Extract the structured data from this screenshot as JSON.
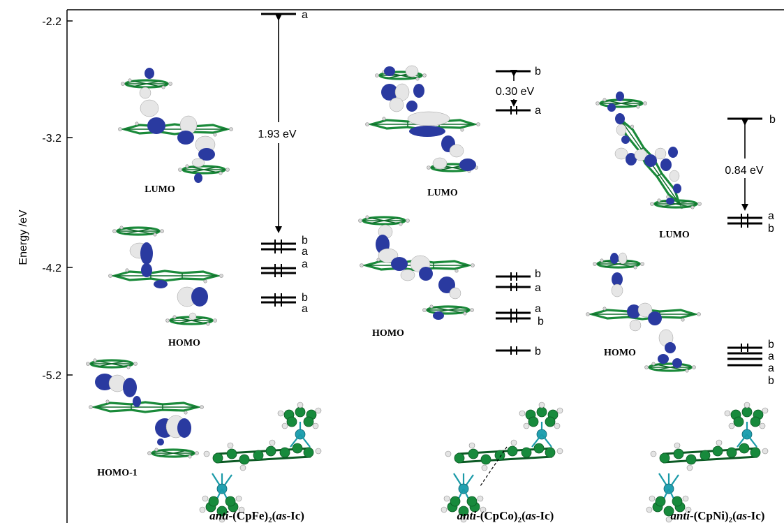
{
  "axis": {
    "ylabel": "Energy /eV",
    "ticks": [
      "-2.2",
      "-3.2",
      "-4.2",
      "-5.2"
    ]
  },
  "gaps": {
    "fe": "1.93 eV",
    "co": "0.30 eV",
    "ni": "0.84 eV"
  },
  "symmetry_labels": {
    "fe": [
      "a",
      "b",
      "a",
      "a",
      "b",
      "a"
    ],
    "co": [
      "b",
      "a",
      "b",
      "a",
      "a",
      "b",
      "b"
    ],
    "ni": [
      "b",
      "a",
      "b",
      "b",
      "a",
      "a",
      "b"
    ]
  },
  "orbital_labels": {
    "fe": [
      "LUMO",
      "HOMO",
      "HOMO-1"
    ],
    "co": [
      "LUMO",
      "HOMO"
    ],
    "ni": [
      "LUMO",
      "HOMO"
    ]
  },
  "complexes": {
    "fe": {
      "pre": "anti",
      "mid": "-(CpFe)",
      "sub": "2",
      "open": "(",
      "as": "as",
      "post": "-Ic)"
    },
    "co": {
      "pre": "anti",
      "mid": "-(CpCo)",
      "sub": "2",
      "open": "(",
      "as": "as",
      "post": "-Ic)"
    },
    "ni": {
      "pre": "anti",
      "mid": "-(CpNi)",
      "sub": "2",
      "open": "(",
      "as": "as",
      "post": "-Ic)"
    }
  },
  "colors": {
    "carbon": "#178a3c",
    "metal": "#22a0b0",
    "orbital_positive": "#2a3aa0",
    "orbital_negative": "#e6e6e6"
  }
}
